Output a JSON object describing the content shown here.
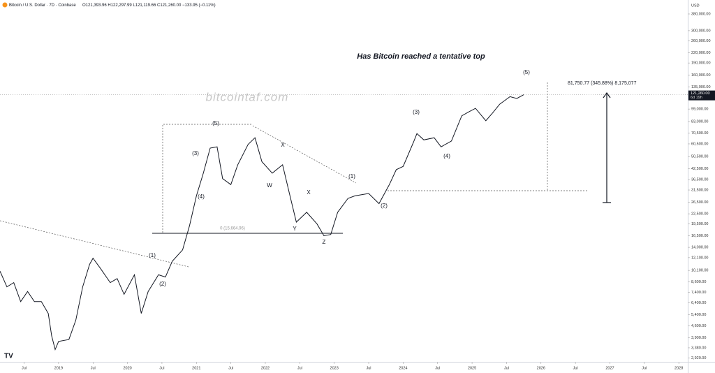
{
  "chart_data": {
    "type": "line",
    "header": "Bitcoin / U.S. Dollar · 7D · Coinbase",
    "ohlc": "O121,393.96 H122,297.99 L121,119.66 C121,260.00 −133.95 (−0.11%)",
    "title": "Has Bitcoin reached a tentative top",
    "watermark": "bitcointaf.com",
    "currency": "USD",
    "measure_label": "81,750.77 (345.88%) 8,175,077",
    "fib_label": "0 (15,664.96)",
    "last_price": {
      "value": 121260,
      "label": "121,260.00"
    },
    "countdown": "6d 19h",
    "wave_labels": [
      "(5)",
      "(3)",
      "(4)",
      "(1)",
      "(2)",
      "(5)",
      "(3)",
      "(4)",
      "(1)",
      "(2)",
      "W",
      "X",
      "X",
      "Y",
      "Z"
    ],
    "log_scale": true,
    "grid": false,
    "series": [
      {
        "name": "BTCUSD",
        "color": "#131722",
        "x": [
          2018.15,
          2018.25,
          2018.35,
          2018.45,
          2018.55,
          2018.65,
          2018.75,
          2018.85,
          2018.9,
          2018.95,
          2019.0,
          2019.15,
          2019.25,
          2019.35,
          2019.45,
          2019.5,
          2019.6,
          2019.75,
          2019.85,
          2019.95,
          2020.1,
          2020.2,
          2020.3,
          2020.45,
          2020.55,
          2020.65,
          2020.8,
          2020.9,
          2021.0,
          2021.1,
          2021.2,
          2021.3,
          2021.38,
          2021.5,
          2021.6,
          2021.75,
          2021.85,
          2021.95,
          2022.1,
          2022.25,
          2022.35,
          2022.45,
          2022.6,
          2022.75,
          2022.85,
          2022.95,
          2023.05,
          2023.2,
          2023.3,
          2023.5,
          2023.65,
          2023.8,
          2023.9,
          2024.0,
          2024.15,
          2024.2,
          2024.3,
          2024.45,
          2024.55,
          2024.7,
          2024.85,
          2024.95,
          2025.05,
          2025.2,
          2025.3,
          2025.4,
          2025.55,
          2025.65,
          2025.75
        ],
        "values": [
          10000,
          8000,
          8500,
          6500,
          7500,
          6500,
          6500,
          5500,
          4000,
          3300,
          3700,
          3800,
          5000,
          8000,
          11000,
          12000,
          10500,
          8500,
          9000,
          7200,
          9500,
          5500,
          7500,
          9500,
          9200,
          11500,
          13500,
          19000,
          29000,
          40000,
          57000,
          58000,
          37000,
          34000,
          45000,
          60000,
          66000,
          47000,
          40000,
          45000,
          30000,
          20000,
          23000,
          19500,
          16500,
          16800,
          23000,
          28000,
          29000,
          30000,
          26000,
          34000,
          42000,
          44000,
          62000,
          70000,
          64000,
          66000,
          58000,
          63000,
          90000,
          95000,
          100000,
          84000,
          94000,
          106000,
          118000,
          115000,
          121260
        ]
      }
    ],
    "xlim": [
      2018.15,
      2028.13
    ],
    "xticks": [
      {
        "value": 2018.5,
        "label": "Jul"
      },
      2019,
      {
        "value": 2019.5,
        "label": "Jul"
      },
      2020,
      {
        "value": 2020.5,
        "label": "Jul"
      },
      2021,
      {
        "value": 2021.5,
        "label": "Jul"
      },
      2022,
      {
        "value": 2022.5,
        "label": "Jul"
      },
      2023,
      {
        "value": 2023.5,
        "label": "Jul"
      },
      2024,
      {
        "value": 2024.5,
        "label": "Jul"
      },
      2025,
      {
        "value": 2025.5,
        "label": "Jul"
      },
      2026,
      {
        "value": 2026.5,
        "label": "Jul"
      },
      2027,
      {
        "value": 2027.5,
        "label": "Jul"
      },
      2028
    ],
    "ylim": [
      2800,
      463000
    ],
    "yticks": [
      {
        "value": 380000,
        "label": "380,000.00"
      },
      {
        "value": 300000,
        "label": "300,000.00"
      },
      {
        "value": 260000,
        "label": "260,000.00"
      },
      {
        "value": 220000,
        "label": "220,000.00"
      },
      {
        "value": 190000,
        "label": "190,000.00"
      },
      {
        "value": 160000,
        "label": "160,000.00"
      },
      {
        "value": 135000,
        "label": "135,000.00"
      },
      {
        "value": 99000,
        "label": "99,000.00"
      },
      {
        "value": 83000,
        "label": "83,000.00"
      },
      {
        "value": 70500,
        "label": "70,500.00"
      },
      {
        "value": 60500,
        "label": "60,500.00"
      },
      {
        "value": 50500,
        "label": "50,500.00"
      },
      {
        "value": 42500,
        "label": "42,500.00"
      },
      {
        "value": 36500,
        "label": "36,500.00"
      },
      {
        "value": 31500,
        "label": "31,500.00"
      },
      {
        "value": 26500,
        "label": "26,500.00"
      },
      {
        "value": 22500,
        "label": "22,500.00"
      },
      {
        "value": 19500,
        "label": "19,500.00"
      },
      {
        "value": 16500,
        "label": "16,500.00"
      },
      {
        "value": 14000,
        "label": "14,000.00"
      },
      {
        "value": 12100,
        "label": "12,100.00"
      },
      {
        "value": 10100,
        "label": "10,100.00"
      },
      {
        "value": 8600,
        "label": "8,600.00"
      },
      {
        "value": 7400,
        "label": "7,400.00"
      },
      {
        "value": 6400,
        "label": "6,400.00"
      },
      {
        "value": 5400,
        "label": "5,400.00"
      },
      {
        "value": 4600,
        "label": "4,600.00"
      },
      {
        "value": 3900,
        "label": "3,900.00"
      },
      {
        "value": 3380,
        "label": "3,380.00"
      },
      {
        "value": 2920,
        "label": "2,920.00"
      }
    ]
  }
}
